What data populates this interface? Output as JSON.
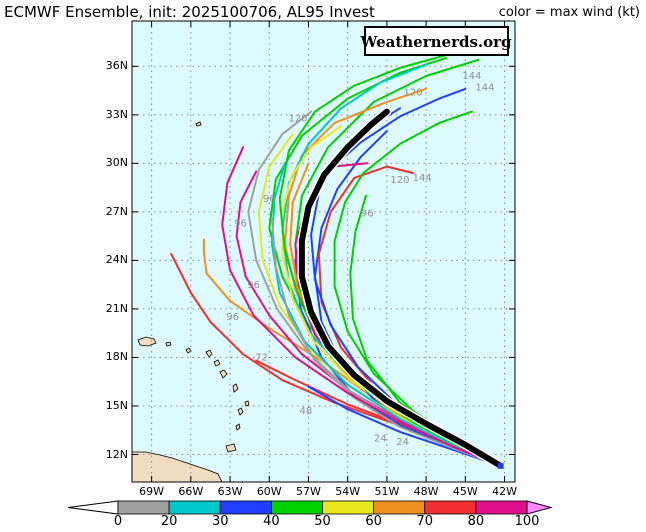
{
  "title": {
    "left": "ECMWF Ensemble, init: 2025100706, AL95 Invest",
    "right": "color = max wind (kt)"
  },
  "watermark": "Weathernerds.org",
  "map": {
    "ocean_color": "#ddfafe",
    "land_color": "#f0dcc0",
    "lat_labels": [
      "36N",
      "33N",
      "30N",
      "27N",
      "24N",
      "21N",
      "18N",
      "15N",
      "12N"
    ],
    "lon_labels": [
      "69W",
      "66W",
      "63W",
      "60W",
      "57W",
      "54W",
      "51W",
      "48W",
      "45W",
      "42W"
    ],
    "lat_values": [
      36,
      33,
      30,
      27,
      24,
      21,
      18,
      15,
      12
    ],
    "lon_values": [
      -69,
      -66,
      -63,
      -60,
      -57,
      -54,
      -51,
      -48,
      -45,
      -42
    ],
    "lon_range": [
      -70.5,
      -41.2
    ],
    "lat_range": [
      10.3,
      38.8
    ]
  },
  "hour_labels": [
    {
      "text": "144",
      "lon": -43.5,
      "lat": 34.5
    },
    {
      "text": "144",
      "lon": -44.5,
      "lat": 35.2
    },
    {
      "text": "144",
      "lon": -48.3,
      "lat": 28.9
    },
    {
      "text": "120",
      "lon": -50.0,
      "lat": 28.8
    },
    {
      "text": "120",
      "lon": -49.0,
      "lat": 34.2
    },
    {
      "text": "120",
      "lon": -57.8,
      "lat": 32.6
    },
    {
      "text": "96",
      "lon": -52.5,
      "lat": 26.7
    },
    {
      "text": "96",
      "lon": -60.0,
      "lat": 27.6
    },
    {
      "text": "96",
      "lon": -62.2,
      "lat": 26.1
    },
    {
      "text": "96",
      "lon": -61.2,
      "lat": 22.3
    },
    {
      "text": "96",
      "lon": -62.8,
      "lat": 20.3
    },
    {
      "text": "72",
      "lon": -60.6,
      "lat": 17.8
    },
    {
      "text": "48",
      "lon": -57.2,
      "lat": 14.5
    },
    {
      "text": "24",
      "lon": -51.5,
      "lat": 12.8
    },
    {
      "text": "24",
      "lon": -49.8,
      "lat": 12.6
    }
  ],
  "colorbar": {
    "ticks": [
      "0",
      "20",
      "30",
      "40",
      "50",
      "60",
      "70",
      "80",
      "100"
    ],
    "colors": [
      "#a0a0a0",
      "#00c8c8",
      "#2040ff",
      "#00d000",
      "#e8e820",
      "#f09020",
      "#f03030",
      "#e0108a"
    ],
    "end_left": "#ffffff",
    "end_right": "#ff88ff"
  },
  "chart_data": {
    "type": "line",
    "mean_track": {
      "color": "#000000",
      "points": [
        [
          -42.3,
          11.3
        ],
        [
          -45,
          12.6
        ],
        [
          -48,
          13.9
        ],
        [
          -51,
          15.3
        ],
        [
          -53.5,
          16.9
        ],
        [
          -55.5,
          18.7
        ],
        [
          -56.8,
          20.8
        ],
        [
          -57.5,
          23.0
        ],
        [
          -57.5,
          25.2
        ],
        [
          -57,
          27.3
        ],
        [
          -55.8,
          29.3
        ],
        [
          -54,
          31.0
        ],
        [
          -52.2,
          32.4
        ],
        [
          -51.0,
          33.2
        ]
      ]
    },
    "members": [
      {
        "color": "#00d000",
        "points": [
          [
            -42.3,
            11.3
          ],
          [
            -46,
            12.8
          ],
          [
            -50,
            14.5
          ],
          [
            -53.5,
            16.6
          ],
          [
            -56,
            19
          ],
          [
            -57.6,
            22
          ],
          [
            -58,
            25
          ],
          [
            -57.5,
            28
          ],
          [
            -55.5,
            31
          ],
          [
            -52,
            33.8
          ],
          [
            -48,
            35.4
          ],
          [
            -44,
            36.4
          ]
        ]
      },
      {
        "color": "#00d000",
        "points": [
          [
            -42.3,
            11.3
          ],
          [
            -46,
            12.9
          ],
          [
            -50,
            14.8
          ],
          [
            -54,
            17.2
          ],
          [
            -57,
            20
          ],
          [
            -59,
            23
          ],
          [
            -60,
            26
          ],
          [
            -59.5,
            29
          ],
          [
            -57.5,
            31.7
          ],
          [
            -54,
            34
          ],
          [
            -50,
            35.6
          ],
          [
            -46.5,
            36.5
          ]
        ]
      },
      {
        "color": "#f09020",
        "points": [
          [
            -42.3,
            11.3
          ],
          [
            -46,
            12.7
          ],
          [
            -50,
            14.4
          ],
          [
            -53.5,
            16.4
          ],
          [
            -56.2,
            19
          ],
          [
            -58,
            22.2
          ],
          [
            -58.8,
            25
          ],
          [
            -58.5,
            28
          ],
          [
            -57.5,
            30.5
          ],
          [
            -55,
            32.5
          ],
          [
            -51,
            33.8
          ],
          [
            -48,
            34.6
          ]
        ]
      },
      {
        "color": "#f09020",
        "points": [
          [
            -42.3,
            11.3
          ],
          [
            -47,
            13.2
          ],
          [
            -52,
            15.5
          ],
          [
            -56,
            17.8
          ],
          [
            -60,
            19.8
          ],
          [
            -63,
            21.5
          ],
          [
            -64.8,
            23.2
          ],
          [
            -65,
            24.5
          ],
          [
            -65,
            25.3
          ]
        ]
      },
      {
        "color": "#f03030",
        "points": [
          [
            -42.3,
            11.3
          ],
          [
            -46,
            12.5
          ],
          [
            -50,
            13.8
          ],
          [
            -55,
            15.2
          ],
          [
            -59,
            16.6
          ],
          [
            -62,
            18.2
          ],
          [
            -64.5,
            20.2
          ],
          [
            -66,
            22
          ],
          [
            -67.5,
            24.4
          ]
        ]
      },
      {
        "color": "#f03030",
        "points": [
          [
            -42.3,
            11.3
          ],
          [
            -46,
            12.6
          ],
          [
            -50,
            13.9
          ],
          [
            -54,
            15.1
          ],
          [
            -58,
            16.6
          ],
          [
            -61,
            17.8
          ]
        ]
      },
      {
        "color": "#2040ff",
        "points": [
          [
            -42.3,
            11.3
          ],
          [
            -46,
            12.4
          ],
          [
            -50,
            13.8
          ],
          [
            -53.5,
            15.6
          ],
          [
            -56,
            18
          ],
          [
            -57.6,
            21
          ],
          [
            -58,
            24
          ],
          [
            -57.2,
            27
          ],
          [
            -55.5,
            29.5
          ],
          [
            -53,
            31.3
          ],
          [
            -50,
            32.9
          ],
          [
            -47,
            34
          ],
          [
            -45,
            34.6
          ]
        ]
      },
      {
        "color": "#2040ff",
        "points": [
          [
            -42.3,
            11.3
          ],
          [
            -45.5,
            12.3
          ],
          [
            -49,
            13.6
          ],
          [
            -52,
            15.4
          ],
          [
            -54.5,
            17.6
          ],
          [
            -56,
            20.2
          ],
          [
            -56.5,
            23
          ],
          [
            -56,
            26
          ],
          [
            -54.8,
            28.4
          ],
          [
            -53,
            30.4
          ],
          [
            -51,
            32
          ]
        ]
      },
      {
        "color": "#00c8c8",
        "points": [
          [
            -42.3,
            11.3
          ],
          [
            -46,
            12.8
          ],
          [
            -50,
            14.6
          ],
          [
            -54,
            17
          ],
          [
            -57,
            19.6
          ],
          [
            -58.5,
            22.6
          ],
          [
            -59,
            25.8
          ],
          [
            -58.5,
            28.8
          ],
          [
            -57,
            31.2
          ],
          [
            -54.5,
            33.4
          ],
          [
            -51.5,
            35
          ],
          [
            -48,
            36.1
          ]
        ]
      },
      {
        "color": "#e8e820",
        "points": [
          [
            -42.3,
            11.3
          ],
          [
            -46,
            12.7
          ],
          [
            -50,
            14.3
          ],
          [
            -53.8,
            16.2
          ],
          [
            -57,
            18.6
          ],
          [
            -59.2,
            21.2
          ],
          [
            -60.5,
            24
          ],
          [
            -60.8,
            27
          ],
          [
            -60,
            29.8
          ],
          [
            -58.2,
            31.8
          ]
        ]
      },
      {
        "color": "#e0108a",
        "points": [
          [
            -42.3,
            11.3
          ],
          [
            -46,
            12.6
          ],
          [
            -50,
            14.1
          ],
          [
            -54,
            16
          ],
          [
            -57.5,
            18.2
          ],
          [
            -60,
            20.6
          ],
          [
            -61.8,
            23
          ],
          [
            -62.5,
            25.5
          ],
          [
            -62.2,
            27.6
          ],
          [
            -61,
            29.5
          ]
        ]
      },
      {
        "color": "#e0108a",
        "points": [
          [
            -42.3,
            11.3
          ],
          [
            -46,
            12.8
          ],
          [
            -50,
            14.6
          ],
          [
            -54,
            17
          ],
          [
            -56.5,
            19.4
          ],
          [
            -57.8,
            22.2
          ],
          [
            -58,
            25
          ],
          [
            -57,
            27.8
          ],
          [
            -55.2,
            29.8
          ],
          [
            -52.5,
            30
          ]
        ]
      },
      {
        "color": "#f03030",
        "points": [
          [
            -42.3,
            11.3
          ],
          [
            -45.5,
            12.6
          ],
          [
            -49,
            14.2
          ],
          [
            -52,
            16.2
          ],
          [
            -54.5,
            18.6
          ],
          [
            -56,
            21.4
          ],
          [
            -56.2,
            24.4
          ],
          [
            -55.3,
            27
          ],
          [
            -53.5,
            29.1
          ],
          [
            -51,
            29.8
          ],
          [
            -49,
            29.4
          ]
        ]
      },
      {
        "color": "#00d000",
        "points": [
          [
            -42.3,
            11.3
          ],
          [
            -45.5,
            12.8
          ],
          [
            -49,
            14.7
          ],
          [
            -52,
            17
          ],
          [
            -54,
            19.6
          ],
          [
            -55,
            22.4
          ],
          [
            -55,
            25.2
          ],
          [
            -54.2,
            27.6
          ],
          [
            -52.8,
            29.4
          ],
          [
            -50,
            31.2
          ],
          [
            -47,
            32.5
          ],
          [
            -44.5,
            33.2
          ]
        ]
      },
      {
        "color": "#a0a0a0",
        "points": [
          [
            -42.3,
            11.3
          ],
          [
            -46,
            12.5
          ],
          [
            -50,
            14
          ],
          [
            -53.8,
            15.9
          ],
          [
            -57,
            18.3
          ],
          [
            -59.4,
            21
          ],
          [
            -61,
            24
          ],
          [
            -61.6,
            27
          ],
          [
            -60.8,
            29.6
          ],
          [
            -59,
            31.8
          ],
          [
            -56.8,
            33.2
          ]
        ]
      },
      {
        "color": "#2040ff",
        "points": [
          [
            -42.3,
            11.3
          ],
          [
            -46,
            12.9
          ],
          [
            -50,
            14.9
          ],
          [
            -53.2,
            17.4
          ],
          [
            -55.3,
            20
          ],
          [
            -56.5,
            22.8
          ],
          [
            -56.8,
            25.6
          ],
          [
            -56.2,
            28.2
          ],
          [
            -54.8,
            30.4
          ],
          [
            -52.6,
            32.1
          ],
          [
            -50,
            33.4
          ]
        ]
      },
      {
        "color": "#00c8c8",
        "points": [
          [
            -42.3,
            11.3
          ],
          [
            -46,
            12.6
          ],
          [
            -50,
            14.2
          ],
          [
            -54,
            16.3
          ],
          [
            -57.3,
            19
          ],
          [
            -59.2,
            22
          ],
          [
            -59.8,
            25
          ],
          [
            -59.6,
            27.8
          ],
          [
            -58.8,
            30
          ]
        ]
      },
      {
        "color": "#e8e820",
        "points": [
          [
            -42.3,
            11.3
          ],
          [
            -46,
            12.8
          ],
          [
            -50,
            14.5
          ],
          [
            -53.8,
            16.6
          ],
          [
            -56.6,
            19
          ],
          [
            -58.2,
            21.6
          ],
          [
            -59,
            24.4
          ],
          [
            -59,
            27
          ],
          [
            -58.3,
            29.2
          ],
          [
            -56.8,
            31
          ],
          [
            -54.5,
            32.3
          ]
        ]
      },
      {
        "color": "#00d000",
        "points": [
          [
            -42.3,
            11.3
          ],
          [
            -45.5,
            12.5
          ],
          [
            -49,
            14
          ],
          [
            -52.5,
            15.9
          ],
          [
            -55.5,
            18.4
          ],
          [
            -57.6,
            21.4
          ],
          [
            -58.8,
            24.6
          ],
          [
            -59.2,
            27.8
          ],
          [
            -58.5,
            30.8
          ],
          [
            -56.5,
            33.2
          ],
          [
            -53.5,
            34.8
          ],
          [
            -50,
            35.9
          ],
          [
            -46,
            36.8
          ]
        ]
      },
      {
        "color": "#f09020",
        "points": [
          [
            -42.3,
            11.3
          ],
          [
            -46,
            12.8
          ],
          [
            -50,
            14.6
          ],
          [
            -53.5,
            16.8
          ],
          [
            -56.2,
            19.4
          ],
          [
            -57.8,
            22.2
          ],
          [
            -58.4,
            25
          ],
          [
            -58.2,
            27.6
          ],
          [
            -57,
            30
          ]
        ]
      },
      {
        "color": "#2040ff",
        "points": [
          [
            -42.3,
            11.3
          ],
          [
            -46,
            12.3
          ],
          [
            -50,
            13.4
          ],
          [
            -54,
            14.8
          ],
          [
            -57,
            16.2
          ]
        ]
      },
      {
        "color": "#00d000",
        "points": [
          [
            -42.3,
            11.3
          ],
          [
            -46,
            12.9
          ],
          [
            -50,
            15.2
          ],
          [
            -52.5,
            17.8
          ],
          [
            -53.6,
            20.4
          ],
          [
            -53.8,
            23.2
          ],
          [
            -53.4,
            25.8
          ],
          [
            -52.6,
            28
          ]
        ]
      },
      {
        "color": "#a0a0a0",
        "points": [
          [
            -42.3,
            11.3
          ],
          [
            -46,
            12.4
          ],
          [
            -50,
            13.7
          ],
          [
            -53.5,
            15.5
          ],
          [
            -56.5,
            17.8
          ],
          [
            -58.5,
            20.6
          ],
          [
            -59.5,
            23.6
          ],
          [
            -59.8,
            26.6
          ]
        ]
      },
      {
        "color": "#e0108a",
        "points": [
          [
            -42.3,
            11.3
          ],
          [
            -46,
            12.5
          ],
          [
            -50,
            14
          ],
          [
            -54,
            15.8
          ],
          [
            -58,
            18
          ],
          [
            -61.2,
            20.6
          ],
          [
            -63,
            23.4
          ],
          [
            -63.6,
            26.2
          ],
          [
            -63.2,
            28.8
          ],
          [
            -62,
            31
          ]
        ]
      }
    ]
  }
}
